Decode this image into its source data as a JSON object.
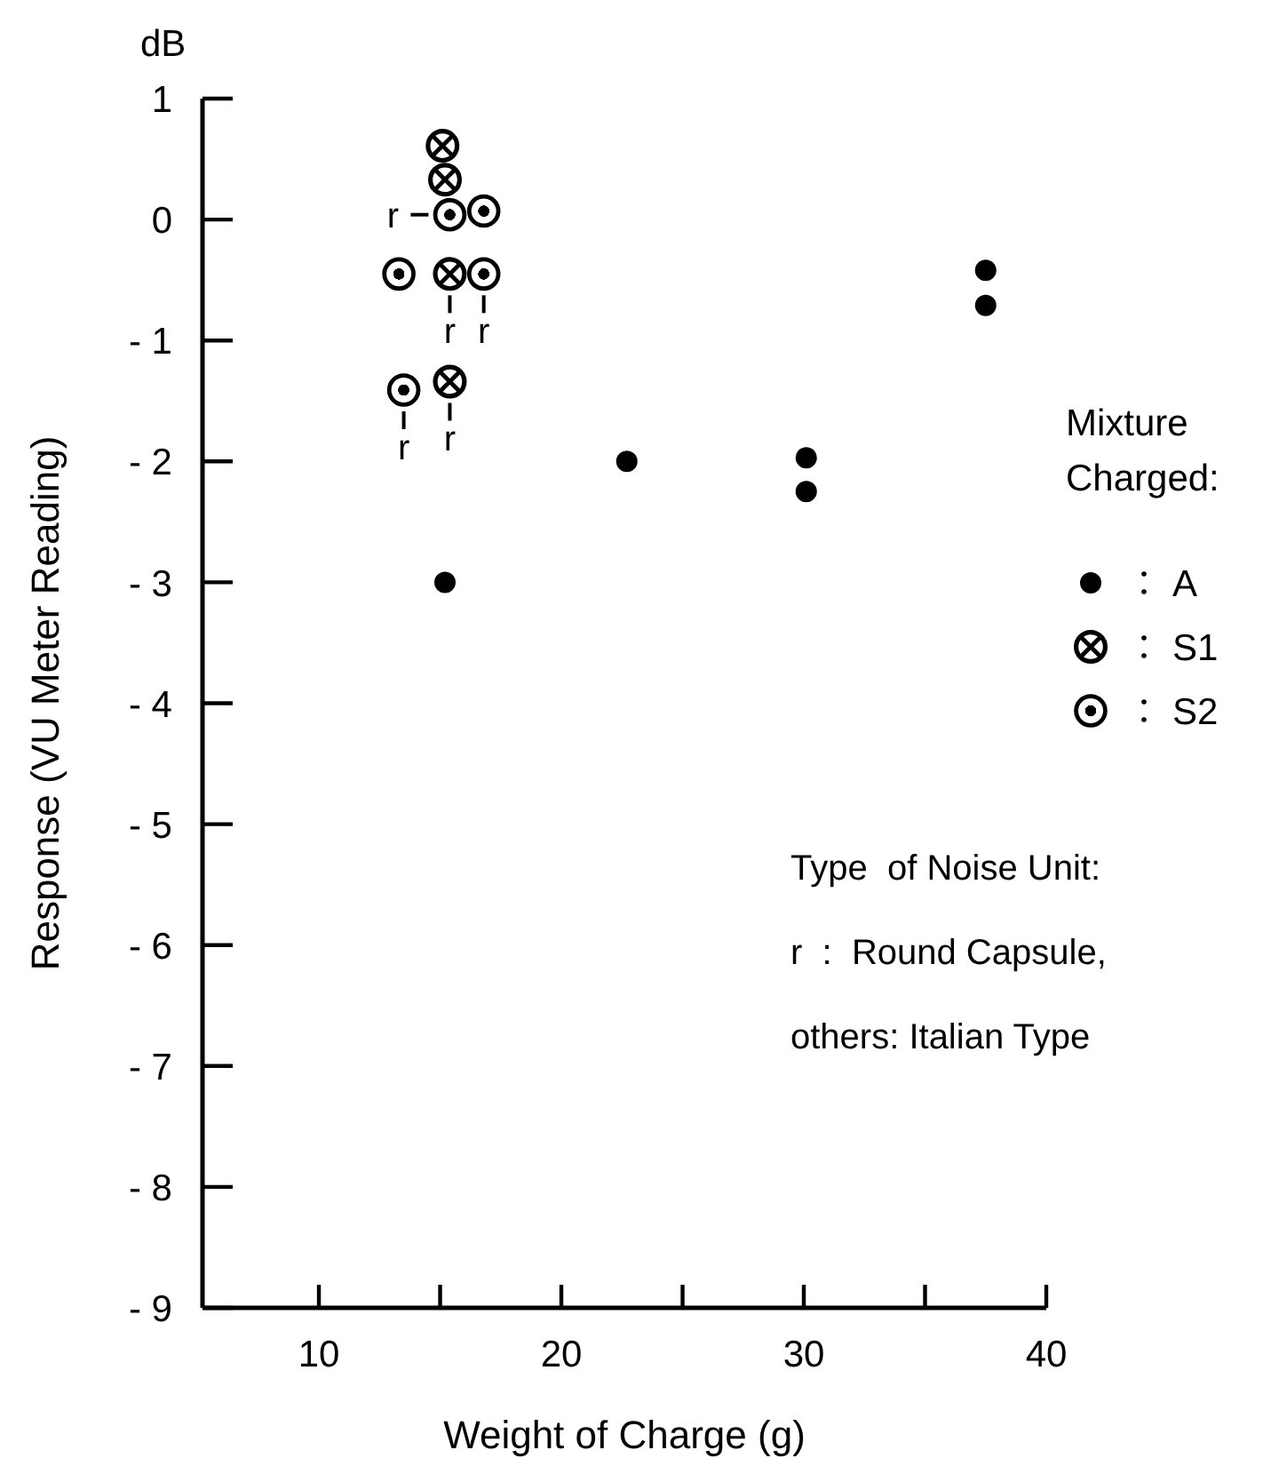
{
  "chart_data": {
    "type": "scatter",
    "xlabel": "Weight of Charge (g)",
    "ylabel": "Response (VU Meter Reading)",
    "legend_title": "Mixture Charged:",
    "legend": "right",
    "marker": "circle",
    "grid": false,
    "xlim": [
      5.2,
      40
    ],
    "ylim": [
      -9,
      1
    ],
    "xticks": [
      10,
      {
        "value": 15,
        "label": null
      },
      20,
      {
        "value": 25,
        "label": null
      },
      30,
      {
        "value": 35,
        "label": null
      },
      40
    ],
    "yticks": [
      {
        "value": -9,
        "label": "- 9"
      },
      {
        "value": -8,
        "label": "- 8"
      },
      {
        "value": -7,
        "label": "- 7"
      },
      {
        "value": -6,
        "label": "- 6"
      },
      {
        "value": -5,
        "label": "- 5"
      },
      {
        "value": -4,
        "label": "- 4"
      },
      {
        "value": -3,
        "label": "- 3"
      },
      {
        "value": -2,
        "label": "- 2"
      },
      {
        "value": -1,
        "label": "- 1"
      },
      0,
      1
    ],
    "series": [
      {
        "name": "A",
        "color": "#000000",
        "x": [
          15.2,
          22.7,
          30.1,
          30.1,
          37.5,
          37.5
        ],
        "values": [
          -3.0,
          -2.0,
          -1.97,
          -2.25,
          -0.42,
          -0.71
        ]
      },
      {
        "name": "S1",
        "color": "#000000",
        "x": [
          15.1,
          15.2,
          15.4,
          15.4
        ],
        "values": [
          0.61,
          0.33,
          -0.45,
          -1.34
        ]
      },
      {
        "name": "S2",
        "color": "#000000",
        "x": [
          15.4,
          16.8,
          13.3,
          16.8,
          13.5
        ],
        "values": [
          0.04,
          0.07,
          -0.45,
          -0.45,
          -1.41
        ]
      }
    ],
    "annotations": [
      "dB",
      "Type  of Noise Unit:",
      "r  :  Round Capsule,",
      "others: Italian Type",
      {
        "text": "r",
        "x": 15.4,
        "y": 0.04
      },
      {
        "text": "r",
        "x": 15.4,
        "y": -0.45
      },
      {
        "text": "r",
        "x": 16.8,
        "y": -0.45
      },
      {
        "text": "r",
        "x": 13.5,
        "y": -1.41
      },
      {
        "text": "r",
        "x": 15.4,
        "y": -1.34
      }
    ]
  }
}
